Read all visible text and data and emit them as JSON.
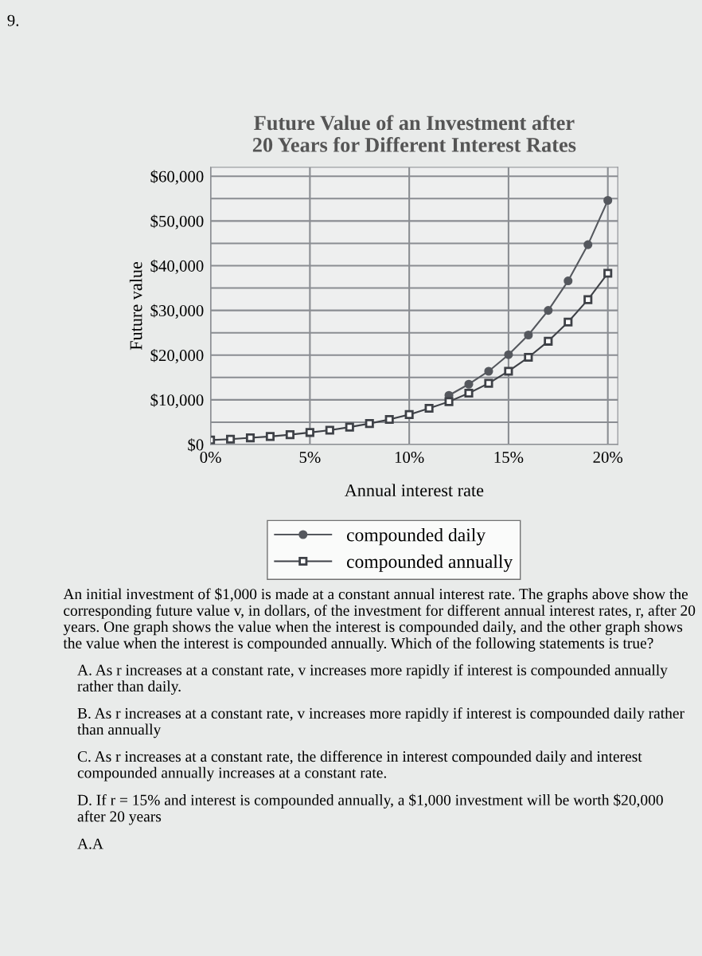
{
  "chart_data": {
    "type": "line",
    "title": "Future Value of an Investment after\n20 Years for Different Interest Rates",
    "xlabel": "Annual interest rate",
    "ylabel": "Future value",
    "x": [
      0,
      1,
      2,
      3,
      4,
      5,
      6,
      7,
      8,
      9,
      10,
      11,
      12,
      13,
      14,
      15,
      16,
      17,
      18,
      19,
      20
    ],
    "series": [
      {
        "name": "compounded daily",
        "color": "#55585e",
        "marker": "circle",
        "values": [
          null,
          null,
          null,
          null,
          null,
          null,
          null,
          null,
          null,
          null,
          null,
          null,
          11000,
          13500,
          16400,
          20100,
          24500,
          30000,
          36600,
          44700,
          54600
        ]
      },
      {
        "name": "compounded annually",
        "color": "#3e4147",
        "marker": "square",
        "values": [
          1000,
          1200,
          1500,
          1800,
          2200,
          2700,
          3200,
          3900,
          4700,
          5600,
          6700,
          8100,
          9600,
          11500,
          13700,
          16400,
          19500,
          23100,
          27400,
          32400,
          38300
        ]
      }
    ],
    "xlim": [
      0,
      20.5
    ],
    "xticks": [
      {
        "value": 0,
        "label": "0%"
      },
      {
        "value": 5,
        "label": "5%"
      },
      {
        "value": 10,
        "label": "10%"
      },
      {
        "value": 15,
        "label": "15%"
      },
      {
        "value": 20,
        "label": "20%"
      }
    ],
    "ylim": [
      0,
      62000
    ],
    "yticks": [
      {
        "value": 0,
        "label": "$0"
      },
      {
        "value": 5000,
        "label": null
      },
      {
        "value": 10000,
        "label": "$10,000"
      },
      {
        "value": 15000,
        "label": null
      },
      {
        "value": 20000,
        "label": "$20,000"
      },
      {
        "value": 25000,
        "label": null
      },
      {
        "value": 30000,
        "label": "$30,000"
      },
      {
        "value": 35000,
        "label": null
      },
      {
        "value": 40000,
        "label": "$40,000"
      },
      {
        "value": 45000,
        "label": null
      },
      {
        "value": 50000,
        "label": "$50,000"
      },
      {
        "value": 55000,
        "label": null
      },
      {
        "value": 60000,
        "label": "$60,000"
      }
    ],
    "grid": true,
    "legend": "bottom",
    "line_style": "solid",
    "annotations": [
      "9.",
      "An initial investment of $1,000 is made at a constant annual interest rate. The graphs above show the corresponding future value v, in dollars, of the investment for different annual interest rates, r, after 20 years. One graph shows the value when the interest is compounded daily, and the other graph shows the value when the interest is compounded annually. Which of the following statements is true?",
      "A. As r increases at a constant rate, v increases more rapidly if interest is compounded annually rather than daily.",
      "B. As r increases at a constant rate, v increases more rapidly if interest is compounded daily rather than annually",
      "C. As r increases at a constant rate, the difference in interest compounded daily and interest compounded annually increases at a constant rate.",
      "D. If r = 15% and interest is compounded annually, a $1,000 investment will be worth $20,000 after 20 years",
      "A.A"
    ]
  }
}
